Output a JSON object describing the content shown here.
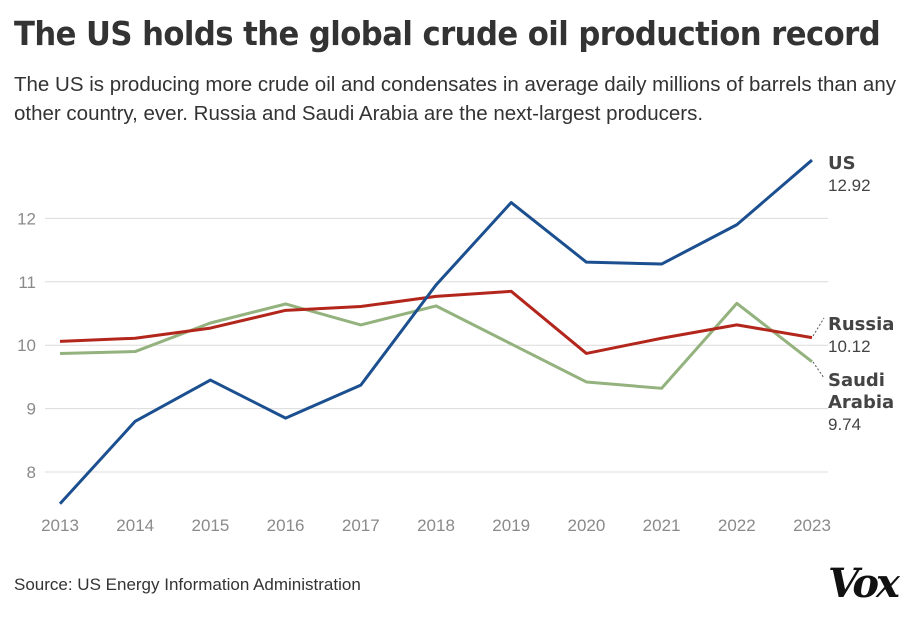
{
  "header": {
    "title": "The US holds the global crude oil production record",
    "subtitle": "The US is producing more crude oil and condensates in average daily millions of barrels than any other country, ever. Russia and Saudi Arabia are the next-largest producers."
  },
  "footer": {
    "source": "Source: US Energy Information Administration",
    "logo": "Vox"
  },
  "chart_data": {
    "type": "line",
    "title": "The US holds the global crude oil production record",
    "xlabel": "",
    "ylabel": "",
    "x": [
      2013,
      2014,
      2015,
      2016,
      2017,
      2018,
      2019,
      2020,
      2021,
      2022,
      2023
    ],
    "x_tick_labels": [
      "2013",
      "2014",
      "2015",
      "2016",
      "2017",
      "2018",
      "2019",
      "2020",
      "2021",
      "2022",
      "2023"
    ],
    "y_ticks": [
      8,
      9,
      10,
      11,
      12
    ],
    "y_tick_labels": [
      "8",
      "9",
      "10",
      "11",
      "12"
    ],
    "ylim": [
      7.5,
      13.2
    ],
    "grid": "horizontal",
    "legend": "direct labels at right",
    "series": [
      {
        "name": "US",
        "end_label": "12.92",
        "color": "#1b4f8f",
        "values": [
          7.5,
          8.8,
          9.45,
          8.85,
          9.37,
          10.95,
          12.25,
          11.31,
          11.28,
          11.9,
          12.92
        ]
      },
      {
        "name": "Russia",
        "end_label": "10.12",
        "color": "#b3261c",
        "values": [
          10.06,
          10.11,
          10.27,
          10.55,
          10.61,
          10.77,
          10.85,
          9.87,
          10.11,
          10.32,
          10.12
        ]
      },
      {
        "name": "Saudi Arabia",
        "name_lines": [
          "Saudi",
          "Arabia"
        ],
        "end_label": "9.74",
        "color": "#93b27e",
        "values": [
          9.87,
          9.9,
          10.35,
          10.65,
          10.32,
          10.62,
          10.02,
          9.42,
          9.32,
          10.66,
          9.74
        ]
      }
    ]
  }
}
